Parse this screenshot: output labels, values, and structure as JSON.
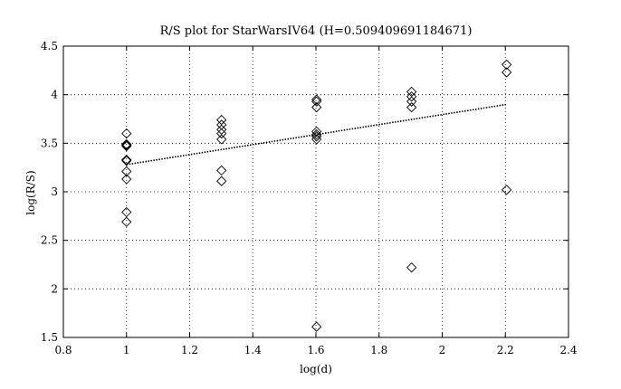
{
  "chart_data": {
    "type": "scatter",
    "title": "R/S plot for StarWarsIV64 (H=0.509409691184671)",
    "xlabel": "log(d)",
    "ylabel": "log(R/S)",
    "xlim": [
      0.8,
      2.4
    ],
    "ylim": [
      1.5,
      4.5
    ],
    "xticks": [
      "0.8",
      "1",
      "1.2",
      "1.4",
      "1.6",
      "1.8",
      "2",
      "2.2",
      "2.4"
    ],
    "yticks": [
      "1.5",
      "2",
      "2.5",
      "3",
      "3.5",
      "4",
      "4.5"
    ],
    "grid": true,
    "marker": "diamond",
    "colors": {
      "axis": "#000000",
      "grid": "#000000",
      "points": "#000000",
      "fit": "#000000"
    },
    "series": [
      {
        "x": [
          1.0,
          1.0,
          1.0,
          1.0,
          1.0,
          1.0,
          1.0,
          1.0,
          1.0,
          1.0,
          1.301,
          1.301,
          1.301,
          1.301,
          1.301,
          1.301,
          1.301,
          1.602,
          1.602,
          1.602,
          1.602,
          1.602,
          1.602,
          1.602,
          1.602,
          1.903,
          1.903,
          1.903,
          1.903,
          1.903,
          2.204,
          2.204,
          2.204
        ],
        "y": [
          3.6,
          3.49,
          3.47,
          3.33,
          3.32,
          3.21,
          3.13,
          2.79,
          2.69,
          3.48,
          3.74,
          3.69,
          3.64,
          3.6,
          3.54,
          3.22,
          3.11,
          3.95,
          3.93,
          3.87,
          3.62,
          3.59,
          3.54,
          3.57,
          1.61,
          4.03,
          3.98,
          3.93,
          3.87,
          2.22,
          4.31,
          4.23,
          3.02
        ]
      }
    ],
    "fit_line": {
      "x": [
        1.0,
        2.204
      ],
      "y": [
        3.28,
        3.9
      ]
    }
  }
}
